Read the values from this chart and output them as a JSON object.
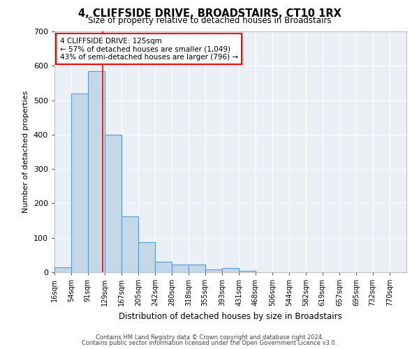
{
  "title": "4, CLIFFSIDE DRIVE, BROADSTAIRS, CT10 1RX",
  "subtitle": "Size of property relative to detached houses in Broadstairs",
  "xlabel": "Distribution of detached houses by size in Broadstairs",
  "ylabel": "Number of detached properties",
  "bar_labels": [
    "16sqm",
    "54sqm",
    "91sqm",
    "129sqm",
    "167sqm",
    "205sqm",
    "242sqm",
    "280sqm",
    "318sqm",
    "355sqm",
    "393sqm",
    "431sqm",
    "468sqm",
    "506sqm",
    "544sqm",
    "582sqm",
    "619sqm",
    "657sqm",
    "695sqm",
    "732sqm",
    "770sqm"
  ],
  "bar_values": [
    15,
    520,
    585,
    400,
    163,
    87,
    30,
    22,
    22,
    8,
    12,
    5,
    0,
    0,
    0,
    0,
    0,
    0,
    0,
    0,
    0
  ],
  "bar_color": "#c5d8e8",
  "bar_edge_color": "#5b9bd5",
  "bar_edge_width": 0.8,
  "bin_edges": [
    16,
    54,
    91,
    129,
    167,
    205,
    242,
    280,
    318,
    355,
    393,
    431,
    468,
    506,
    544,
    582,
    619,
    657,
    695,
    732,
    770
  ],
  "bin_width": 38,
  "ylim": [
    0,
    700
  ],
  "yticks": [
    0,
    100,
    200,
    300,
    400,
    500,
    600,
    700
  ],
  "annotation_text": "4 CLIFFSIDE DRIVE: 125sqm\n← 57% of detached houses are smaller (1,049)\n43% of semi-detached houses are larger (796) →",
  "annotation_box_color": "white",
  "annotation_box_edge_color": "red",
  "vline_color": "red",
  "vline_x": 125,
  "bg_color": "#eaf0f6",
  "grid_color": "white",
  "footer1": "Contains HM Land Registry data © Crown copyright and database right 2024.",
  "footer2": "Contains public sector information licensed under the Open Government Licence v3.0."
}
